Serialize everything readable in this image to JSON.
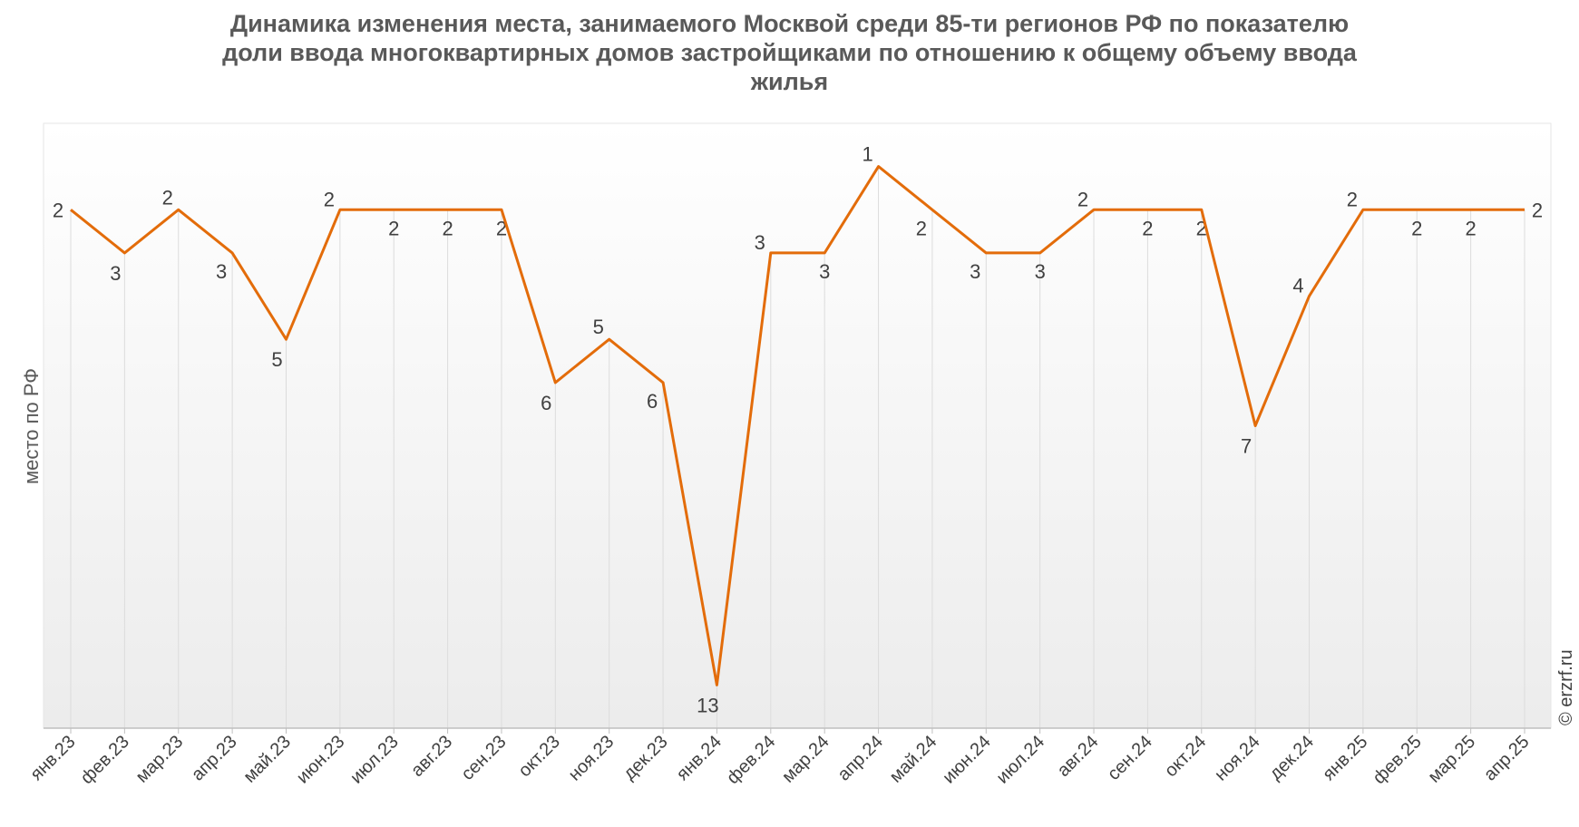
{
  "chart_data": {
    "type": "line",
    "title_lines": [
      "Динамика изменения места, занимаемого Москвой среди 85-ти регионов РФ по показателю",
      "доли ввода многоквартирных домов застройщиками по отношению к общему объему ввода",
      "жилья"
    ],
    "ylabel": "место по РФ",
    "y_reversed": true,
    "ylim": [
      0,
      14
    ],
    "grid": "vertical",
    "categories": [
      "янв.23",
      "фев.23",
      "мар.23",
      "апр.23",
      "май.23",
      "июн.23",
      "июл.23",
      "авг.23",
      "сен.23",
      "окт.23",
      "ноя.23",
      "дек.23",
      "янв.24",
      "фев.24",
      "мар.24",
      "апр.24",
      "май.24",
      "июн.24",
      "июл.24",
      "авг.24",
      "сен.24",
      "окт.24",
      "ноя.24",
      "дек.24",
      "янв.25",
      "фев.25",
      "мар.25",
      "апр.25"
    ],
    "values": [
      2,
      3,
      2,
      3,
      5,
      2,
      2,
      2,
      2,
      6,
      5,
      6,
      13,
      3,
      3,
      1,
      2,
      3,
      3,
      2,
      2,
      2,
      7,
      4,
      2,
      2,
      2,
      2
    ],
    "line_color": "#E36C0A",
    "copyright": "© erzrf.ru"
  }
}
